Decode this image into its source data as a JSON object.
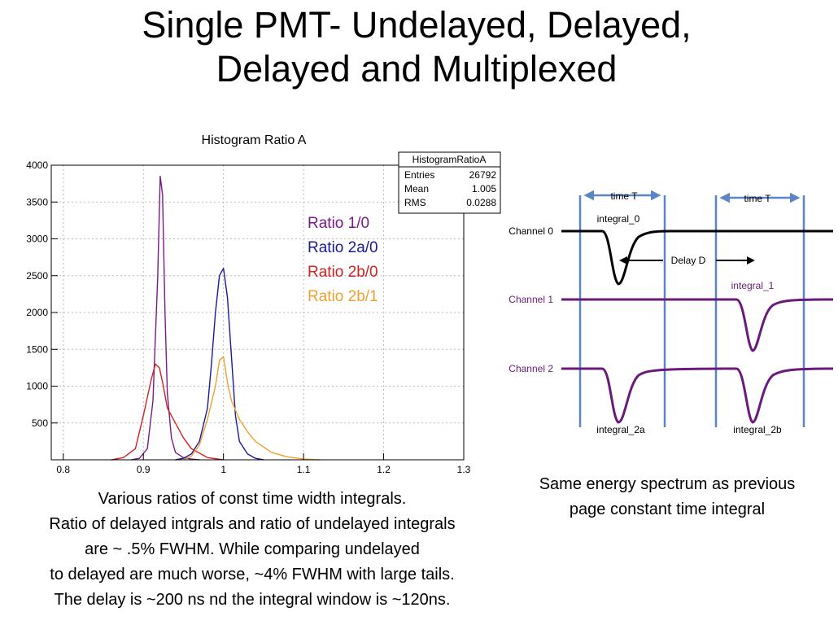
{
  "slide": {
    "title_line1": "Single PMT- Undelayed, Delayed,",
    "title_line2": "Delayed and Multiplexed"
  },
  "chart_data": {
    "type": "line",
    "title": "Histogram Ratio A",
    "xlabel": "",
    "ylabel": "",
    "xlim": [
      0.785,
      1.3
    ],
    "ylim": [
      0,
      4000
    ],
    "x_ticks": [
      "0.8",
      "0.9",
      "1",
      "1.1",
      "1.2",
      "1.3"
    ],
    "y_ticks": [
      "500",
      "1000",
      "1500",
      "2000",
      "2500",
      "3000",
      "3500",
      "4000"
    ],
    "grid": true,
    "stats_box": {
      "name": "HistogramRatioA",
      "rows": [
        {
          "label": "Entries",
          "value": "26792"
        },
        {
          "label": "Mean",
          "value": "1.005"
        },
        {
          "label": "RMS",
          "value": "0.0288"
        }
      ]
    },
    "series": [
      {
        "name": "Ratio 1/0",
        "color": "#7a1a8a",
        "x": [
          0.885,
          0.895,
          0.905,
          0.912,
          0.918,
          0.921,
          0.924,
          0.927,
          0.93,
          0.935,
          0.94,
          0.95,
          0.96,
          0.97
        ],
        "y": [
          0,
          20,
          150,
          800,
          2500,
          3850,
          3600,
          2000,
          900,
          300,
          100,
          30,
          10,
          0
        ]
      },
      {
        "name": "Ratio 2a/0",
        "color": "#1a1a9a",
        "x": [
          0.94,
          0.95,
          0.96,
          0.97,
          0.98,
          0.985,
          0.99,
          0.995,
          1.0,
          1.005,
          1.01,
          1.015,
          1.02,
          1.03,
          1.04,
          1.05
        ],
        "y": [
          0,
          20,
          80,
          250,
          700,
          1300,
          2000,
          2500,
          2600,
          2200,
          1400,
          600,
          250,
          80,
          20,
          0
        ]
      },
      {
        "name": "Ratio 2b/0",
        "color": "#d42020",
        "x": [
          0.86,
          0.875,
          0.89,
          0.9,
          0.91,
          0.915,
          0.92,
          0.925,
          0.93,
          0.94,
          0.95,
          0.96,
          0.98,
          1.0
        ],
        "y": [
          0,
          30,
          150,
          600,
          1100,
          1300,
          1250,
          1000,
          700,
          500,
          300,
          150,
          30,
          0
        ]
      },
      {
        "name": "Ratio 2b/1",
        "color": "#f0a030",
        "x": [
          0.95,
          0.96,
          0.97,
          0.98,
          0.99,
          0.995,
          1.0,
          1.005,
          1.01,
          1.02,
          1.03,
          1.04,
          1.06,
          1.08,
          1.1,
          1.12
        ],
        "y": [
          0,
          50,
          200,
          550,
          1000,
          1350,
          1400,
          1050,
          800,
          550,
          380,
          250,
          100,
          40,
          10,
          0
        ]
      }
    ]
  },
  "diagram": {
    "time_label_1": "time T",
    "time_label_2": "time T",
    "channel_0_label": "Channel 0",
    "channel_1_label": "Channel 1",
    "channel_2_label": "Channel 2",
    "integral_0_label": "integral_0",
    "integral_1_label": "integral_1",
    "integral_2a_label": "integral_2a",
    "integral_2b_label": "integral_2b",
    "delay_label": "Delay D",
    "colors": {
      "channel_0": "#000000",
      "channel_1": "#6a1a7a",
      "channel_2": "#6a1a7a",
      "window_lines": "#5a86c8"
    }
  },
  "captions": {
    "left": [
      "Various ratios of const time width integrals.",
      "Ratio of delayed intgrals and ratio of undelayed integrals",
      "are ~ .5% FWHM. While comparing undelayed",
      "to delayed are much worse, ~4% FWHM with large tails.",
      "The delay is ~200 ns nd the integral window is ~120ns."
    ],
    "right": [
      "Same energy spectrum as previous",
      "page constant time integral"
    ]
  }
}
